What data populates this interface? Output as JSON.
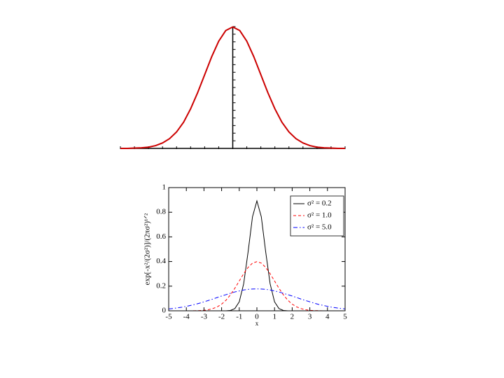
{
  "chart_data": [
    {
      "type": "line",
      "axes": "centered",
      "x": [
        -4,
        -3.75,
        -3.5,
        -3.25,
        -3,
        -2.75,
        -2.5,
        -2.25,
        -2,
        -1.75,
        -1.5,
        -1.25,
        -1,
        -0.75,
        -0.5,
        -0.25,
        0,
        0.25,
        0.5,
        0.75,
        1,
        1.25,
        1.5,
        1.75,
        2,
        2.25,
        2.5,
        2.75,
        3,
        3.25,
        3.5,
        3.75,
        4
      ],
      "series": [
        {
          "color": "#cc0000",
          "style": "solid",
          "values": [
            0,
            0,
            0.001,
            0.002,
            0.004,
            0.009,
            0.018,
            0.032,
            0.054,
            0.086,
            0.13,
            0.183,
            0.242,
            0.301,
            0.352,
            0.387,
            0.399,
            0.387,
            0.352,
            0.301,
            0.242,
            0.183,
            0.13,
            0.086,
            0.054,
            0.032,
            0.018,
            0.009,
            0.004,
            0.002,
            0.001,
            0,
            0
          ]
        }
      ],
      "xlim": [
        -4,
        4
      ],
      "ylim": [
        0,
        0.4
      ],
      "xticks": [
        -4,
        -3.5,
        -3,
        -2.5,
        -2,
        -1.5,
        -1,
        -0.5,
        0,
        0.5,
        1,
        1.5,
        2,
        2.5,
        3,
        3.5,
        4
      ],
      "yticks": [
        0,
        0.025,
        0.05,
        0.075,
        0.1,
        0.125,
        0.15,
        0.175,
        0.2,
        0.225,
        0.25,
        0.275,
        0.3,
        0.325,
        0.35,
        0.375,
        0.4
      ]
    },
    {
      "type": "line",
      "axes": "box",
      "legend": "upper right",
      "xlabel": "x",
      "ylabel": "exp[-x²/(2σ²)]/(2πσ²)¹ᐟ²",
      "x": [
        -5,
        -4.75,
        -4.5,
        -4.25,
        -4,
        -3.75,
        -3.5,
        -3.25,
        -3,
        -2.75,
        -2.5,
        -2.25,
        -2,
        -1.75,
        -1.5,
        -1.25,
        -1,
        -0.75,
        -0.5,
        -0.25,
        0,
        0.25,
        0.5,
        0.75,
        1,
        1.25,
        1.5,
        1.75,
        2,
        2.25,
        2.5,
        2.75,
        3,
        3.25,
        3.5,
        3.75,
        4,
        4.25,
        4.5,
        4.75,
        5
      ],
      "series": [
        {
          "name": "σ² = 0.2",
          "color": "#000000",
          "style": "solid",
          "values": [
            0,
            0,
            0,
            0,
            0,
            0,
            0,
            0,
            0,
            0,
            0,
            0,
            0,
            0,
            0.003,
            0.018,
            0.073,
            0.219,
            0.477,
            0.763,
            0.892,
            0.763,
            0.477,
            0.219,
            0.073,
            0.018,
            0.003,
            0,
            0,
            0,
            0,
            0,
            0,
            0,
            0,
            0,
            0,
            0,
            0,
            0,
            0
          ]
        },
        {
          "name": "σ² = 1.0",
          "color": "#ff0000",
          "style": "dashed",
          "values": [
            0,
            0,
            0,
            0,
            0,
            0,
            0.001,
            0.002,
            0.004,
            0.009,
            0.018,
            0.032,
            0.054,
            0.086,
            0.13,
            0.183,
            0.242,
            0.301,
            0.352,
            0.387,
            0.399,
            0.387,
            0.352,
            0.301,
            0.242,
            0.183,
            0.13,
            0.086,
            0.054,
            0.032,
            0.018,
            0.009,
            0.004,
            0.002,
            0.001,
            0,
            0,
            0,
            0,
            0,
            0
          ]
        },
        {
          "name": "σ² = 5.0",
          "color": "#0000ff",
          "style": "dashdot",
          "values": [
            0.015,
            0.019,
            0.024,
            0.029,
            0.036,
            0.044,
            0.052,
            0.062,
            0.073,
            0.084,
            0.095,
            0.108,
            0.12,
            0.131,
            0.142,
            0.153,
            0.161,
            0.169,
            0.174,
            0.177,
            0.178,
            0.177,
            0.174,
            0.169,
            0.161,
            0.153,
            0.142,
            0.131,
            0.12,
            0.108,
            0.095,
            0.084,
            0.073,
            0.062,
            0.052,
            0.044,
            0.036,
            0.029,
            0.024,
            0.019,
            0.015
          ]
        }
      ],
      "xlim": [
        -5,
        5
      ],
      "ylim": [
        0,
        1
      ],
      "xticks": [
        -5,
        -4,
        -3,
        -2,
        -1,
        0,
        1,
        2,
        3,
        4,
        5
      ],
      "yticks": [
        0,
        0.2,
        0.4,
        0.6,
        0.8,
        1
      ]
    }
  ]
}
